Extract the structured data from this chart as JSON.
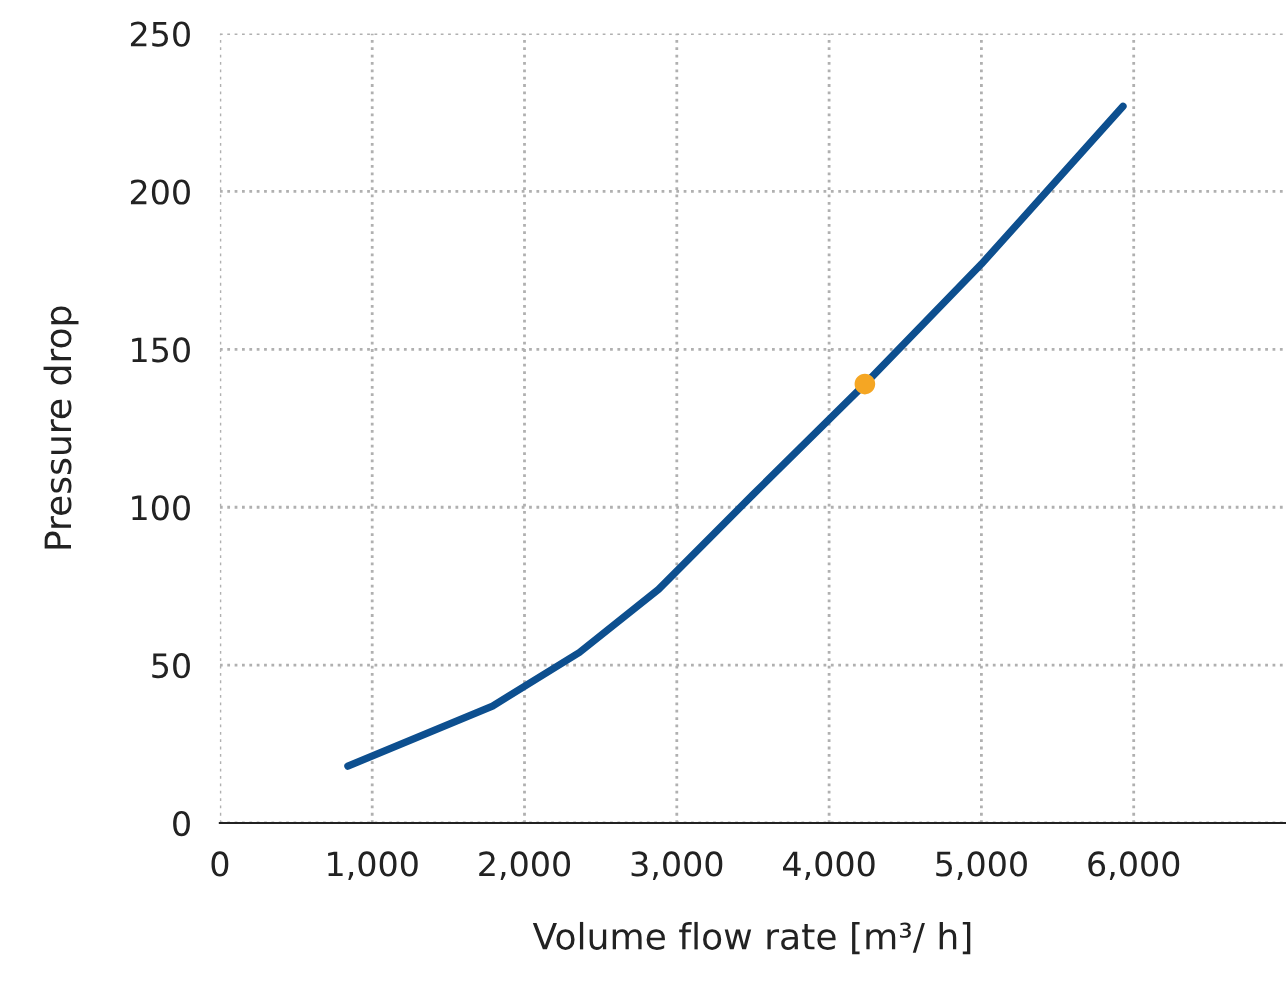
{
  "chart_data": {
    "type": "line",
    "xlabel": "Volume flow rate [m³/ h]",
    "ylabel": "Pressure drop",
    "xlim": [
      0,
      7000
    ],
    "xticks": [
      0,
      {
        "value": 1000,
        "label": "1,000"
      },
      {
        "value": 2000,
        "label": "2,000"
      },
      {
        "value": 3000,
        "label": "3,000"
      },
      {
        "value": 4000,
        "label": "4,000"
      },
      {
        "value": 5000,
        "label": "5,000"
      },
      {
        "value": 6000,
        "label": "6,000"
      }
    ],
    "ylim": [
      0,
      250
    ],
    "yticks": [
      0,
      50,
      100,
      150,
      200,
      250
    ],
    "grid": true,
    "line_style": "solid",
    "marker": "none",
    "series": [
      {
        "color": "#0d4f8f",
        "x": [
          840,
          1790,
          2360,
          2880,
          3500,
          4235,
          5000,
          5930
        ],
        "values": [
          18,
          37,
          54,
          74,
          104,
          139,
          177,
          227
        ]
      },
      {
        "type": "scatter",
        "color": "#f5a623",
        "marker": "circle",
        "x": [
          4235
        ],
        "values": [
          139
        ]
      }
    ]
  }
}
